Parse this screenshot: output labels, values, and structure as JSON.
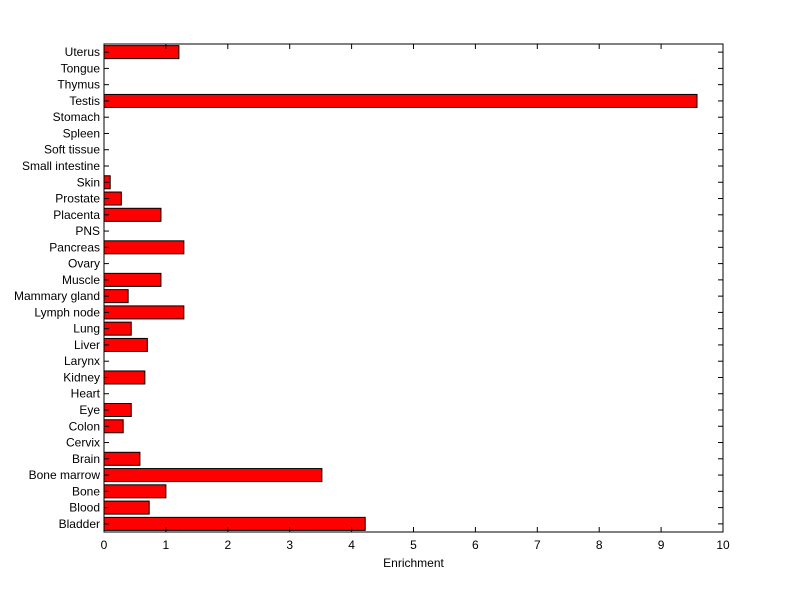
{
  "chart_data": {
    "type": "bar",
    "orientation": "horizontal",
    "xlabel": "Enrichment",
    "ylabel": "",
    "title": "",
    "xlim": [
      0,
      10
    ],
    "xticks": [
      "0",
      "1",
      "2",
      "3",
      "4",
      "5",
      "6",
      "7",
      "8",
      "9",
      "10"
    ],
    "grid": false,
    "bar_color": "#ff0000",
    "edge_color": "#000000",
    "categories": [
      "Bladder",
      "Blood",
      "Bone",
      "Bone marrow",
      "Brain",
      "Cervix",
      "Colon",
      "Eye",
      "Heart",
      "Kidney",
      "Larynx",
      "Liver",
      "Lung",
      "Lymph node",
      "Mammary gland",
      "Muscle",
      "Ovary",
      "Pancreas",
      "PNS",
      "Placenta",
      "Prostate",
      "Skin",
      "Small intestine",
      "Soft tissue",
      "Spleen",
      "Stomach",
      "Testis",
      "Thymus",
      "Tongue",
      "Uterus"
    ],
    "values": [
      4.22,
      0.73,
      1.0,
      3.52,
      0.58,
      0,
      0.31,
      0.44,
      0,
      0.66,
      0,
      0.7,
      0.44,
      1.29,
      0.39,
      0.92,
      0,
      1.29,
      0,
      0.92,
      0.28,
      0.1,
      0,
      0,
      0,
      0,
      9.58,
      0,
      0,
      1.21
    ]
  }
}
